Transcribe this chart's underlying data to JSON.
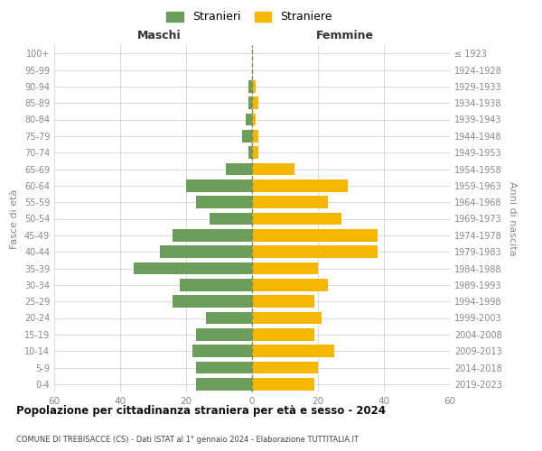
{
  "age_groups": [
    "0-4",
    "5-9",
    "10-14",
    "15-19",
    "20-24",
    "25-29",
    "30-34",
    "35-39",
    "40-44",
    "45-49",
    "50-54",
    "55-59",
    "60-64",
    "65-69",
    "70-74",
    "75-79",
    "80-84",
    "85-89",
    "90-94",
    "95-99",
    "100+"
  ],
  "birth_years": [
    "2019-2023",
    "2014-2018",
    "2009-2013",
    "2004-2008",
    "1999-2003",
    "1994-1998",
    "1989-1993",
    "1984-1988",
    "1979-1983",
    "1974-1978",
    "1969-1973",
    "1964-1968",
    "1959-1963",
    "1954-1958",
    "1949-1953",
    "1944-1948",
    "1939-1943",
    "1934-1938",
    "1929-1933",
    "1924-1928",
    "≤ 1923"
  ],
  "males": [
    17,
    17,
    18,
    17,
    14,
    24,
    22,
    36,
    28,
    24,
    13,
    17,
    20,
    8,
    1,
    3,
    2,
    1,
    1,
    0,
    0
  ],
  "females": [
    19,
    20,
    25,
    19,
    21,
    19,
    23,
    20,
    38,
    38,
    27,
    23,
    29,
    13,
    2,
    2,
    1,
    2,
    1,
    0,
    0
  ],
  "male_color": "#6a9e5a",
  "female_color": "#f5b800",
  "male_legend": "Stranieri",
  "female_legend": "Straniere",
  "left_title": "Maschi",
  "right_title": "Femmine",
  "left_ylabel": "Fasce di età",
  "right_ylabel": "Anni di nascita",
  "xlim": 60,
  "title": "Popolazione per cittadinanza straniera per età e sesso - 2024",
  "subtitle": "COMUNE DI TREBISACCE (CS) - Dati ISTAT al 1° gennaio 2024 - Elaborazione TUTTITALIA.IT",
  "background_color": "#ffffff",
  "grid_color": "#cccccc",
  "dashed_line_color": "#888855",
  "tick_color": "#888888",
  "bar_height": 0.75
}
